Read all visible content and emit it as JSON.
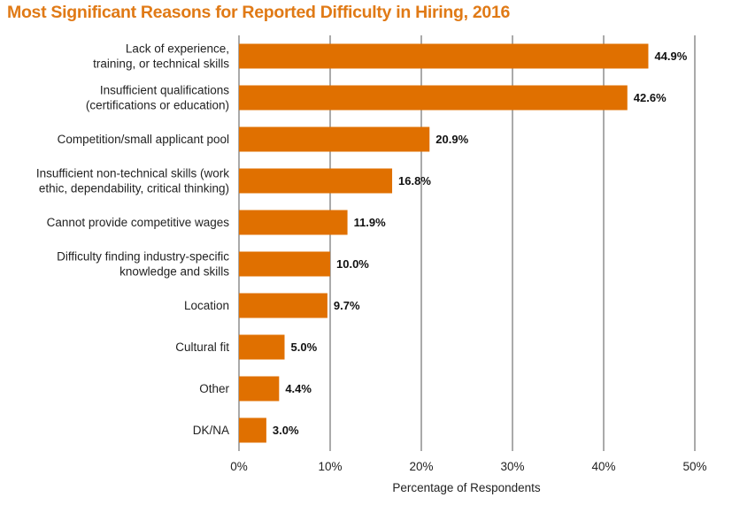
{
  "chart_data": {
    "type": "bar",
    "orientation": "horizontal",
    "title": "Most Significant Reasons for Reported Difficulty in Hiring, 2016",
    "xlabel": "Percentage of Respondents",
    "ylabel": "",
    "xlim": [
      0,
      50
    ],
    "xticks": [
      "0%",
      "10%",
      "20%",
      "30%",
      "40%",
      "50%"
    ],
    "grid": true,
    "bar_color": "#e07000",
    "title_color": "#e07a16",
    "categories": [
      [
        "Lack of experience,",
        "training, or technical skills"
      ],
      [
        "Insufficient qualifications",
        "(certifications or education)"
      ],
      [
        "Competition/small applicant pool"
      ],
      [
        "Insufficient non-technical skills (work",
        "ethic, dependability, critical thinking)"
      ],
      [
        "Cannot provide competitive wages"
      ],
      [
        "Difficulty finding industry-specific",
        "knowledge and skills"
      ],
      [
        "Location"
      ],
      [
        "Cultural fit"
      ],
      [
        "Other"
      ],
      [
        "DK/NA"
      ]
    ],
    "values": [
      44.9,
      42.6,
      20.9,
      16.8,
      11.9,
      10.0,
      9.7,
      5.0,
      4.4,
      3.0
    ],
    "value_labels": [
      "44.9%",
      "42.6%",
      "20.9%",
      "16.8%",
      "11.9%",
      "10.0%",
      "9.7%",
      "5.0%",
      "4.4%",
      "3.0%"
    ]
  }
}
